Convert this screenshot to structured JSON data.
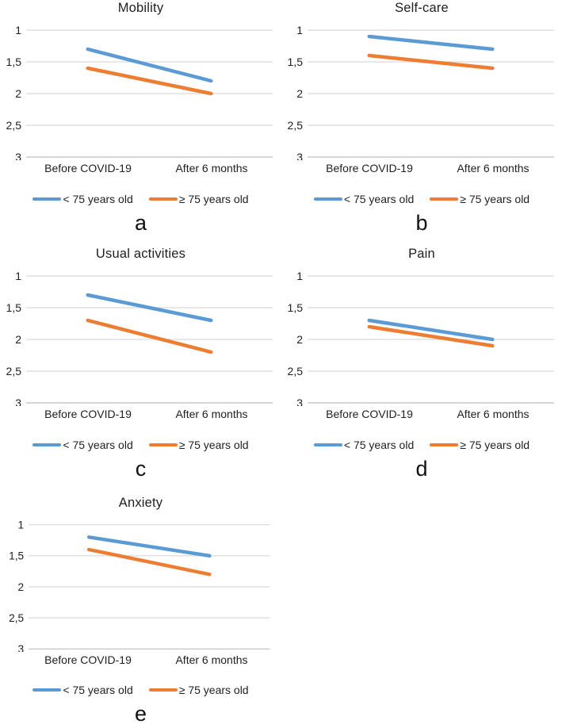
{
  "page": {
    "background": "#ffffff"
  },
  "colors": {
    "series_blue": "#5B9BD5",
    "series_orange": "#ED7D31",
    "gridline": "#D9D9D9",
    "axis_line": "#BFBFBF",
    "text": "#1f1f1f"
  },
  "chart_data": [
    {
      "type": "line",
      "title": "Mobility",
      "letter": "a",
      "categories": [
        "Before COVID-19",
        "After 6 months"
      ],
      "yticks": [
        "1",
        "1,5",
        "2",
        "2,5",
        "3"
      ],
      "ytick_values": [
        1,
        1.5,
        2,
        2.5,
        3
      ],
      "ylim": [
        1,
        3
      ],
      "y_axis_reversed": true,
      "grid": true,
      "legend_position": "bottom",
      "series": [
        {
          "name": "< 75 years old",
          "color": "#5B9BD5",
          "values": [
            1.3,
            1.8
          ]
        },
        {
          "name": "≥ 75 years old",
          "color": "#ED7D31",
          "values": [
            1.6,
            2.0
          ]
        }
      ]
    },
    {
      "type": "line",
      "title": "Self-care",
      "letter": "b",
      "categories": [
        "Before COVID-19",
        "After 6 months"
      ],
      "yticks": [
        "1",
        "1,5",
        "2",
        "2,5",
        "3"
      ],
      "ytick_values": [
        1,
        1.5,
        2,
        2.5,
        3
      ],
      "ylim": [
        1,
        3
      ],
      "y_axis_reversed": true,
      "grid": true,
      "legend_position": "bottom",
      "series": [
        {
          "name": "< 75 years old",
          "color": "#5B9BD5",
          "values": [
            1.1,
            1.3
          ]
        },
        {
          "name": "≥ 75 years old",
          "color": "#ED7D31",
          "values": [
            1.4,
            1.6
          ]
        }
      ]
    },
    {
      "type": "line",
      "title": "Usual activities",
      "letter": "c",
      "categories": [
        "Before COVID-19",
        "After 6 months"
      ],
      "yticks": [
        "1",
        "1,5",
        "2",
        "2,5",
        "3"
      ],
      "ytick_values": [
        1,
        1.5,
        2,
        2.5,
        3
      ],
      "ylim": [
        1,
        3
      ],
      "y_axis_reversed": true,
      "grid": true,
      "legend_position": "bottom",
      "series": [
        {
          "name": "< 75 years old",
          "color": "#5B9BD5",
          "values": [
            1.3,
            1.7
          ]
        },
        {
          "name": "≥ 75 years old",
          "color": "#ED7D31",
          "values": [
            1.7,
            2.2
          ]
        }
      ]
    },
    {
      "type": "line",
      "title": "Pain",
      "letter": "d",
      "categories": [
        "Before COVID-19",
        "After 6 months"
      ],
      "yticks": [
        "1",
        "1,5",
        "2",
        "2,5",
        "3"
      ],
      "ytick_values": [
        1,
        1.5,
        2,
        2.5,
        3
      ],
      "ylim": [
        1,
        3
      ],
      "y_axis_reversed": true,
      "grid": true,
      "legend_position": "bottom",
      "series": [
        {
          "name": "< 75 years old",
          "color": "#5B9BD5",
          "values": [
            1.7,
            2.0
          ]
        },
        {
          "name": "≥ 75 years old",
          "color": "#ED7D31",
          "values": [
            1.8,
            2.1
          ]
        }
      ]
    },
    {
      "type": "line",
      "title": "Anxiety",
      "letter": "e",
      "categories": [
        "Before COVID-19",
        "After 6 months"
      ],
      "yticks": [
        "1",
        "1,5",
        "2",
        "2,5",
        "3"
      ],
      "ytick_values": [
        1,
        1.5,
        2,
        2.5,
        3
      ],
      "ylim": [
        1,
        3
      ],
      "y_axis_reversed": true,
      "grid": true,
      "legend_position": "bottom",
      "series": [
        {
          "name": "< 75 years old",
          "color": "#5B9BD5",
          "values": [
            1.2,
            1.5
          ]
        },
        {
          "name": "≥ 75 years old",
          "color": "#ED7D31",
          "values": [
            1.4,
            1.8
          ]
        }
      ]
    }
  ]
}
